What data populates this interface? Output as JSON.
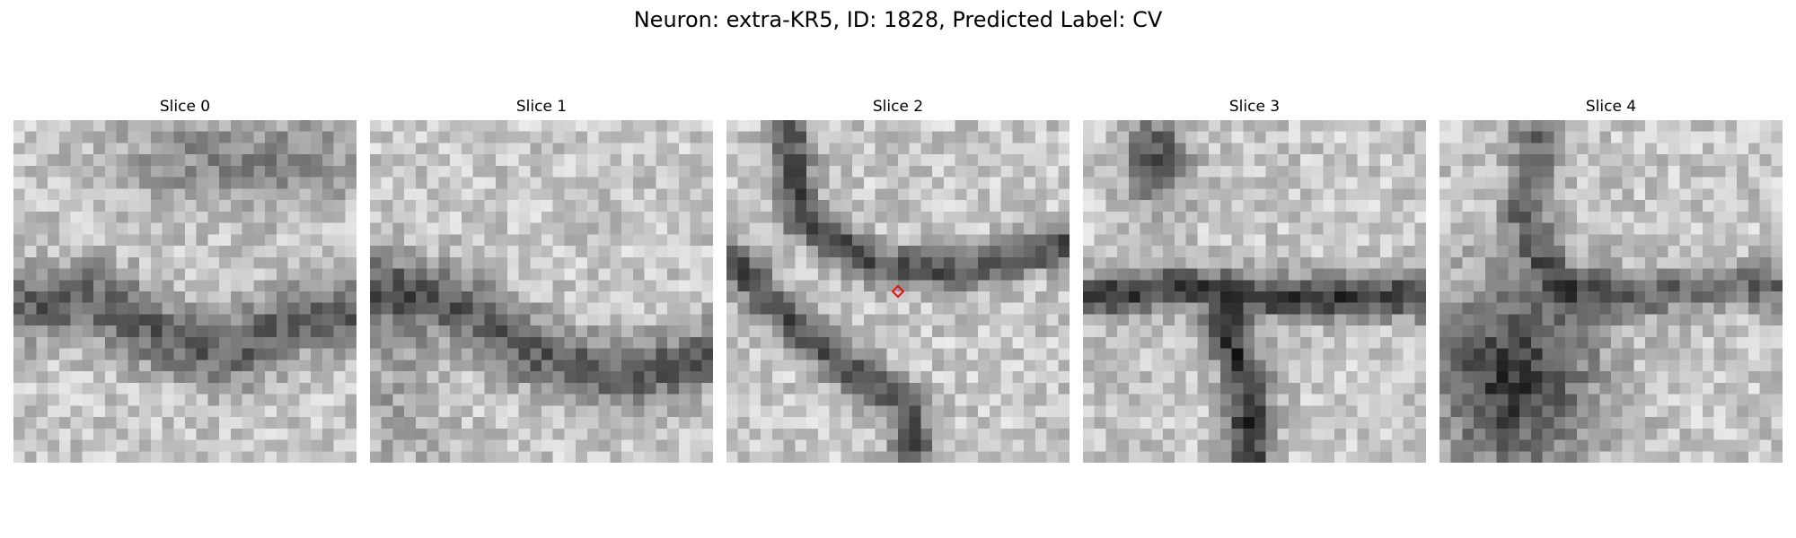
{
  "figure": {
    "title": "Neuron: extra-KR5, ID: 1828, Predicted Label: CV"
  },
  "colormap": "gray",
  "marker": {
    "color": "#e31a1c",
    "shape": "diamond",
    "slice_index": 2
  },
  "slices": [
    {
      "title": "Slice 0"
    },
    {
      "title": "Slice 1"
    },
    {
      "title": "Slice 2"
    },
    {
      "title": "Slice 3"
    },
    {
      "title": "Slice 4"
    }
  ]
}
